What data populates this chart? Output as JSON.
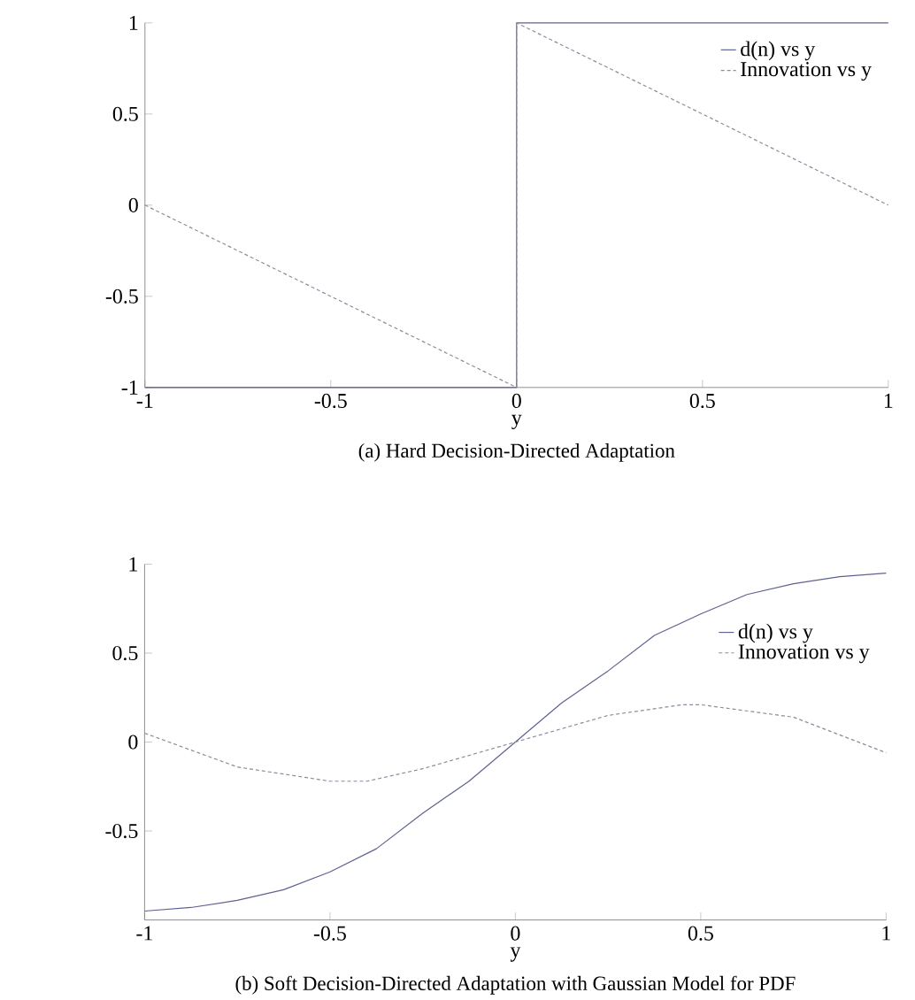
{
  "chart_data": [
    {
      "type": "line",
      "title": "(a) Hard Decision-Directed Adaptation",
      "xlabel": "y",
      "xlim": [
        -1,
        1
      ],
      "ylim": [
        -1,
        1
      ],
      "xticks": [
        -1,
        -0.5,
        0,
        0.5,
        1
      ],
      "yticks": [
        -1,
        -0.5,
        0,
        0.5,
        1
      ],
      "legend": "top right",
      "series": [
        {
          "name": "d(n) vs y",
          "color": "#5f6290",
          "line_style": "solid",
          "x": [
            -1,
            0,
            0,
            1
          ],
          "values": [
            -1,
            -1,
            1,
            1
          ]
        },
        {
          "name": "Innovation vs y",
          "color": "#8c8c9c",
          "line_style": "dashed",
          "x": [
            -1,
            0,
            0,
            1
          ],
          "values": [
            0,
            -1,
            1,
            0
          ]
        }
      ]
    },
    {
      "type": "line",
      "title": "(b) Soft Decision-Directed Adaptation with Gaussian Model for PDF",
      "xlabel": "y",
      "xlim": [
        -1,
        1
      ],
      "ylim": [
        -1,
        1
      ],
      "xticks": [
        -1,
        -0.5,
        0,
        0.5,
        1
      ],
      "yticks": [
        -0.5,
        0,
        0.5,
        1
      ],
      "legend": "right",
      "series": [
        {
          "name": "d(n) vs y",
          "color": "#5f6290",
          "line_style": "solid",
          "x": [
            -1,
            -0.875,
            -0.75,
            -0.625,
            -0.5,
            -0.375,
            -0.25,
            -0.125,
            0,
            0.125,
            0.25,
            0.375,
            0.5,
            0.625,
            0.75,
            0.875,
            1
          ],
          "values": [
            -0.95,
            -0.93,
            -0.89,
            -0.83,
            -0.73,
            -0.6,
            -0.4,
            -0.22,
            0,
            0.22,
            0.4,
            0.6,
            0.72,
            0.83,
            0.89,
            0.93,
            0.95
          ]
        },
        {
          "name": "Innovation vs y",
          "color": "#8c8c9c",
          "line_style": "dashed",
          "x": [
            -1,
            -0.75,
            -0.5,
            -0.4,
            -0.25,
            0,
            0.25,
            0.45,
            0.5,
            0.75,
            1
          ],
          "values": [
            0.05,
            -0.14,
            -0.22,
            -0.22,
            -0.15,
            0,
            0.15,
            0.21,
            0.21,
            0.14,
            -0.06
          ]
        }
      ]
    }
  ]
}
